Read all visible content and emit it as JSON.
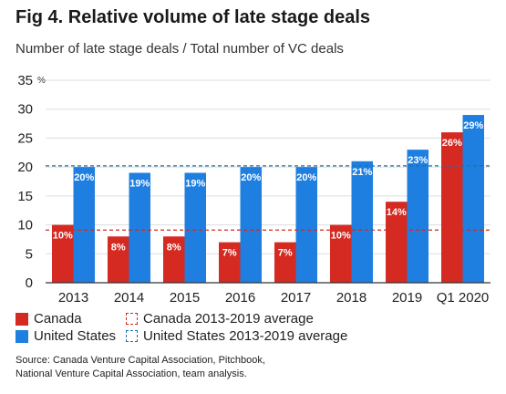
{
  "title": "Fig 4. Relative volume of late stage deals",
  "subtitle": "Number of late stage deals / Total number of VC deals",
  "colors": {
    "canada": "#d42a22",
    "us": "#1f7fe0",
    "canada_avg": "#d42a22",
    "us_avg": "#1f6fa8",
    "grid": "#dddddd",
    "axis": "#333333"
  },
  "chart_data": {
    "type": "bar",
    "categories": [
      "2013",
      "2014",
      "2015",
      "2016",
      "2017",
      "2018",
      "2019",
      "Q1 2020"
    ],
    "series": [
      {
        "name": "Canada",
        "values": [
          10,
          8,
          8,
          7,
          7,
          10,
          14,
          26
        ],
        "labels": [
          "10%",
          "8%",
          "8%",
          "7%",
          "7%",
          "10%",
          "14%",
          "26%"
        ]
      },
      {
        "name": "United States",
        "values": [
          20,
          19,
          19,
          20,
          20,
          21,
          23,
          29
        ],
        "labels": [
          "20%",
          "19%",
          "19%",
          "20%",
          "20%",
          "21%",
          "23%",
          "29%"
        ]
      }
    ],
    "reference_lines": [
      {
        "name": "Canada 2013-2019 average",
        "value": 9.1
      },
      {
        "name": "United States 2013-2019 average",
        "value": 20.2
      }
    ],
    "ylim": [
      0,
      35
    ],
    "yticks": [
      "0",
      "5",
      "10",
      "15",
      "20",
      "25",
      "30",
      "35"
    ],
    "yunit": "%",
    "grid": true
  },
  "legend": {
    "canada": "Canada",
    "canada_avg": "Canada 2013-2019 average",
    "us": "United States",
    "us_avg": "United States 2013-2019 average"
  },
  "source": {
    "line1": "Source: Canada Venture Capital Association, Pitchbook,",
    "line2": "National Venture Capital Association, team analysis."
  }
}
